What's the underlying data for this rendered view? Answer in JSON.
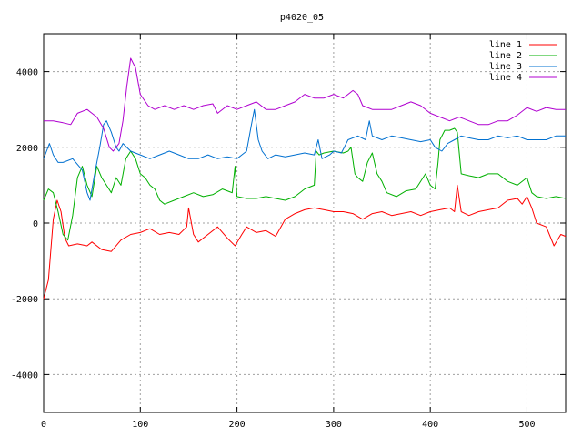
{
  "chart_data": {
    "type": "line",
    "title": "p4020_05",
    "xlabel": "",
    "ylabel": "",
    "xlim": [
      0,
      540
    ],
    "ylim": [
      -5000,
      5000
    ],
    "x_ticks": [
      0,
      100,
      200,
      300,
      400,
      500
    ],
    "y_ticks": [
      -4000,
      -2000,
      0,
      2000,
      4000
    ],
    "grid": true,
    "legend_position": "top-right",
    "series": [
      {
        "name": "line 1",
        "color": "#ff0000",
        "points": [
          [
            0,
            -2000
          ],
          [
            5,
            -1500
          ],
          [
            10,
            100
          ],
          [
            14,
            600
          ],
          [
            18,
            300
          ],
          [
            22,
            -400
          ],
          [
            26,
            -600
          ],
          [
            35,
            -550
          ],
          [
            45,
            -600
          ],
          [
            50,
            -500
          ],
          [
            60,
            -700
          ],
          [
            70,
            -750
          ],
          [
            80,
            -450
          ],
          [
            90,
            -300
          ],
          [
            100,
            -250
          ],
          [
            110,
            -150
          ],
          [
            120,
            -300
          ],
          [
            130,
            -250
          ],
          [
            140,
            -300
          ],
          [
            148,
            -100
          ],
          [
            150,
            400
          ],
          [
            155,
            -300
          ],
          [
            160,
            -500
          ],
          [
            170,
            -300
          ],
          [
            180,
            -100
          ],
          [
            190,
            -400
          ],
          [
            198,
            -600
          ],
          [
            205,
            -300
          ],
          [
            210,
            -100
          ],
          [
            220,
            -250
          ],
          [
            230,
            -200
          ],
          [
            240,
            -350
          ],
          [
            250,
            100
          ],
          [
            260,
            250
          ],
          [
            270,
            350
          ],
          [
            280,
            400
          ],
          [
            290,
            350
          ],
          [
            300,
            300
          ],
          [
            310,
            300
          ],
          [
            320,
            250
          ],
          [
            330,
            100
          ],
          [
            340,
            250
          ],
          [
            350,
            300
          ],
          [
            360,
            200
          ],
          [
            370,
            250
          ],
          [
            380,
            300
          ],
          [
            390,
            200
          ],
          [
            400,
            300
          ],
          [
            410,
            350
          ],
          [
            420,
            400
          ],
          [
            425,
            300
          ],
          [
            428,
            1000
          ],
          [
            432,
            300
          ],
          [
            440,
            200
          ],
          [
            450,
            300
          ],
          [
            460,
            350
          ],
          [
            470,
            400
          ],
          [
            480,
            600
          ],
          [
            490,
            650
          ],
          [
            495,
            500
          ],
          [
            500,
            700
          ],
          [
            505,
            400
          ],
          [
            510,
            0
          ],
          [
            520,
            -100
          ],
          [
            528,
            -600
          ],
          [
            535,
            -300
          ],
          [
            540,
            -350
          ]
        ]
      },
      {
        "name": "line 2",
        "color": "#00b000",
        "points": [
          [
            0,
            600
          ],
          [
            5,
            900
          ],
          [
            10,
            800
          ],
          [
            15,
            300
          ],
          [
            20,
            -300
          ],
          [
            25,
            -450
          ],
          [
            30,
            200
          ],
          [
            35,
            1200
          ],
          [
            40,
            1500
          ],
          [
            45,
            1000
          ],
          [
            50,
            700
          ],
          [
            55,
            1500
          ],
          [
            60,
            1200
          ],
          [
            65,
            1000
          ],
          [
            70,
            800
          ],
          [
            75,
            1200
          ],
          [
            80,
            1000
          ],
          [
            85,
            1700
          ],
          [
            90,
            1900
          ],
          [
            95,
            1700
          ],
          [
            100,
            1300
          ],
          [
            105,
            1200
          ],
          [
            110,
            1000
          ],
          [
            115,
            900
          ],
          [
            120,
            600
          ],
          [
            125,
            500
          ],
          [
            135,
            600
          ],
          [
            145,
            700
          ],
          [
            155,
            800
          ],
          [
            165,
            700
          ],
          [
            175,
            750
          ],
          [
            185,
            900
          ],
          [
            195,
            800
          ],
          [
            198,
            1500
          ],
          [
            200,
            700
          ],
          [
            210,
            650
          ],
          [
            220,
            650
          ],
          [
            230,
            700
          ],
          [
            240,
            650
          ],
          [
            250,
            600
          ],
          [
            260,
            700
          ],
          [
            270,
            900
          ],
          [
            280,
            1000
          ],
          [
            282,
            1900
          ],
          [
            285,
            1800
          ],
          [
            290,
            1850
          ],
          [
            300,
            1900
          ],
          [
            310,
            1850
          ],
          [
            315,
            1900
          ],
          [
            318,
            2000
          ],
          [
            322,
            1300
          ],
          [
            325,
            1200
          ],
          [
            330,
            1100
          ],
          [
            335,
            1600
          ],
          [
            340,
            1850
          ],
          [
            345,
            1300
          ],
          [
            350,
            1100
          ],
          [
            355,
            800
          ],
          [
            365,
            700
          ],
          [
            375,
            850
          ],
          [
            385,
            900
          ],
          [
            395,
            1300
          ],
          [
            400,
            1000
          ],
          [
            405,
            900
          ],
          [
            408,
            1600
          ],
          [
            410,
            2200
          ],
          [
            415,
            2450
          ],
          [
            420,
            2450
          ],
          [
            425,
            2500
          ],
          [
            428,
            2400
          ],
          [
            432,
            1300
          ],
          [
            440,
            1250
          ],
          [
            450,
            1200
          ],
          [
            460,
            1300
          ],
          [
            470,
            1300
          ],
          [
            480,
            1100
          ],
          [
            490,
            1000
          ],
          [
            500,
            1200
          ],
          [
            505,
            800
          ],
          [
            510,
            700
          ],
          [
            520,
            650
          ],
          [
            530,
            700
          ],
          [
            540,
            650
          ]
        ]
      },
      {
        "name": "line 3",
        "color": "#0070d0",
        "points": [
          [
            0,
            1700
          ],
          [
            3,
            1900
          ],
          [
            6,
            2100
          ],
          [
            10,
            1800
          ],
          [
            15,
            1600
          ],
          [
            20,
            1600
          ],
          [
            30,
            1700
          ],
          [
            40,
            1400
          ],
          [
            45,
            800
          ],
          [
            48,
            600
          ],
          [
            52,
            1200
          ],
          [
            58,
            2000
          ],
          [
            62,
            2600
          ],
          [
            65,
            2700
          ],
          [
            70,
            2400
          ],
          [
            75,
            2000
          ],
          [
            78,
            1900
          ],
          [
            82,
            2100
          ],
          [
            90,
            1900
          ],
          [
            100,
            1800
          ],
          [
            110,
            1700
          ],
          [
            120,
            1800
          ],
          [
            130,
            1900
          ],
          [
            140,
            1800
          ],
          [
            150,
            1700
          ],
          [
            160,
            1700
          ],
          [
            170,
            1800
          ],
          [
            180,
            1700
          ],
          [
            190,
            1750
          ],
          [
            200,
            1700
          ],
          [
            205,
            1800
          ],
          [
            210,
            1900
          ],
          [
            215,
            2600
          ],
          [
            218,
            3000
          ],
          [
            222,
            2200
          ],
          [
            226,
            1900
          ],
          [
            232,
            1700
          ],
          [
            240,
            1800
          ],
          [
            250,
            1750
          ],
          [
            260,
            1800
          ],
          [
            270,
            1850
          ],
          [
            280,
            1800
          ],
          [
            284,
            2200
          ],
          [
            288,
            1700
          ],
          [
            296,
            1800
          ],
          [
            300,
            1900
          ],
          [
            308,
            1850
          ],
          [
            315,
            2200
          ],
          [
            325,
            2300
          ],
          [
            333,
            2200
          ],
          [
            337,
            2700
          ],
          [
            340,
            2300
          ],
          [
            350,
            2200
          ],
          [
            360,
            2300
          ],
          [
            370,
            2250
          ],
          [
            380,
            2200
          ],
          [
            390,
            2150
          ],
          [
            400,
            2200
          ],
          [
            405,
            2000
          ],
          [
            412,
            1900
          ],
          [
            418,
            2100
          ],
          [
            425,
            2200
          ],
          [
            432,
            2300
          ],
          [
            440,
            2250
          ],
          [
            450,
            2200
          ],
          [
            460,
            2200
          ],
          [
            470,
            2300
          ],
          [
            480,
            2250
          ],
          [
            490,
            2300
          ],
          [
            500,
            2200
          ],
          [
            510,
            2200
          ],
          [
            520,
            2200
          ],
          [
            530,
            2300
          ],
          [
            540,
            2300
          ]
        ]
      },
      {
        "name": "line 4",
        "color": "#b000d0",
        "points": [
          [
            0,
            2700
          ],
          [
            10,
            2700
          ],
          [
            20,
            2650
          ],
          [
            28,
            2600
          ],
          [
            35,
            2900
          ],
          [
            45,
            3000
          ],
          [
            50,
            2900
          ],
          [
            55,
            2800
          ],
          [
            62,
            2500
          ],
          [
            68,
            2000
          ],
          [
            72,
            1900
          ],
          [
            78,
            2100
          ],
          [
            82,
            2700
          ],
          [
            86,
            3600
          ],
          [
            90,
            4350
          ],
          [
            95,
            4100
          ],
          [
            100,
            3400
          ],
          [
            108,
            3100
          ],
          [
            115,
            3000
          ],
          [
            125,
            3100
          ],
          [
            135,
            3000
          ],
          [
            145,
            3100
          ],
          [
            155,
            3000
          ],
          [
            165,
            3100
          ],
          [
            175,
            3150
          ],
          [
            180,
            2900
          ],
          [
            190,
            3100
          ],
          [
            200,
            3000
          ],
          [
            210,
            3100
          ],
          [
            220,
            3200
          ],
          [
            230,
            3000
          ],
          [
            240,
            3000
          ],
          [
            250,
            3100
          ],
          [
            260,
            3200
          ],
          [
            270,
            3400
          ],
          [
            280,
            3300
          ],
          [
            290,
            3300
          ],
          [
            300,
            3400
          ],
          [
            310,
            3300
          ],
          [
            320,
            3500
          ],
          [
            325,
            3400
          ],
          [
            330,
            3100
          ],
          [
            340,
            3000
          ],
          [
            350,
            3000
          ],
          [
            360,
            3000
          ],
          [
            370,
            3100
          ],
          [
            380,
            3200
          ],
          [
            390,
            3100
          ],
          [
            400,
            2900
          ],
          [
            410,
            2800
          ],
          [
            420,
            2700
          ],
          [
            430,
            2800
          ],
          [
            440,
            2700
          ],
          [
            450,
            2600
          ],
          [
            460,
            2600
          ],
          [
            470,
            2700
          ],
          [
            480,
            2700
          ],
          [
            490,
            2850
          ],
          [
            500,
            3050
          ],
          [
            510,
            2950
          ],
          [
            520,
            3050
          ],
          [
            530,
            3000
          ],
          [
            540,
            3000
          ]
        ]
      }
    ]
  }
}
